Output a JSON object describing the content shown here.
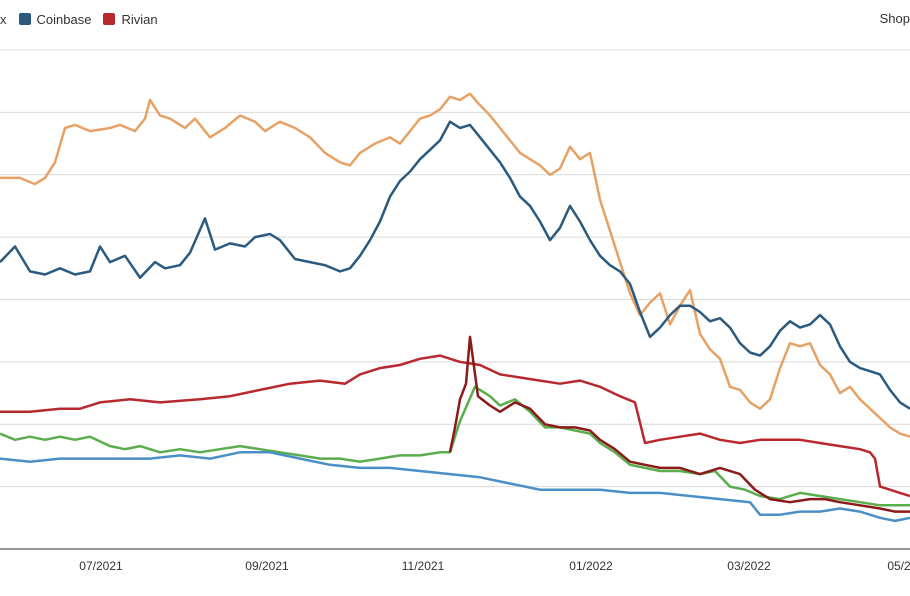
{
  "chart_data": {
    "type": "line",
    "title": "",
    "xlabel": "",
    "ylabel": "",
    "legend": {
      "placement": "top",
      "entries": [
        {
          "name": "x",
          "color": "#e8a165",
          "partial": true
        },
        {
          "name": "Coinbase",
          "color": "#2b5a7e"
        },
        {
          "name": "Rivian",
          "color": "#b8282e"
        }
      ],
      "right_entry": "Shop"
    },
    "x_ticks": [
      "07/2021",
      "09/2021",
      "11/2021",
      "01/2022",
      "03/2022",
      "05/2"
    ],
    "grid": "horizontal",
    "ylim": [
      0,
      8
    ],
    "series": [
      {
        "name": "x",
        "color": "#e8a165",
        "x": [
          0,
          20,
          35,
          45,
          55,
          65,
          75,
          90,
          110,
          120,
          135,
          145,
          150,
          160,
          170,
          185,
          195,
          210,
          225,
          240,
          255,
          265,
          280,
          295,
          310,
          325,
          340,
          350,
          360,
          375,
          390,
          400,
          410,
          420,
          430,
          440,
          450,
          460,
          470,
          478,
          490,
          500,
          510,
          520,
          530,
          540,
          550,
          560,
          570,
          580,
          590,
          600,
          610,
          620,
          630,
          640,
          650,
          660,
          670,
          680,
          690,
          700,
          710,
          720,
          730,
          740,
          750,
          760,
          770,
          780,
          790,
          800,
          810,
          820,
          830,
          840,
          850,
          860,
          870,
          880,
          890,
          900,
          910
        ],
        "y": [
          5.95,
          5.95,
          5.85,
          5.95,
          6.2,
          6.75,
          6.8,
          6.7,
          6.75,
          6.8,
          6.7,
          6.9,
          7.2,
          6.95,
          6.9,
          6.75,
          6.9,
          6.6,
          6.75,
          6.95,
          6.85,
          6.7,
          6.85,
          6.75,
          6.6,
          6.35,
          6.2,
          6.15,
          6.35,
          6.5,
          6.6,
          6.5,
          6.7,
          6.9,
          6.95,
          7.05,
          7.25,
          7.2,
          7.3,
          7.15,
          6.95,
          6.75,
          6.55,
          6.35,
          6.25,
          6.15,
          6.0,
          6.1,
          6.45,
          6.25,
          6.35,
          5.6,
          5.1,
          4.6,
          4.1,
          3.75,
          3.95,
          4.1,
          3.6,
          3.9,
          4.15,
          3.45,
          3.2,
          3.05,
          2.6,
          2.55,
          2.35,
          2.25,
          2.4,
          2.9,
          3.3,
          3.25,
          3.3,
          2.95,
          2.8,
          2.5,
          2.6,
          2.4,
          2.25,
          2.1,
          1.95,
          1.85,
          1.8
        ]
      },
      {
        "name": "Coinbase",
        "color": "#2b5a7e",
        "x": [
          0,
          15,
          30,
          45,
          60,
          75,
          90,
          100,
          110,
          125,
          140,
          155,
          165,
          180,
          190,
          205,
          215,
          230,
          245,
          255,
          270,
          280,
          295,
          310,
          325,
          340,
          350,
          360,
          370,
          380,
          390,
          400,
          410,
          420,
          430,
          440,
          450,
          460,
          470,
          480,
          490,
          500,
          510,
          520,
          530,
          540,
          550,
          560,
          570,
          580,
          590,
          600,
          610,
          620,
          630,
          640,
          650,
          660,
          670,
          680,
          690,
          700,
          710,
          720,
          730,
          740,
          750,
          760,
          770,
          780,
          790,
          800,
          810,
          820,
          830,
          840,
          850,
          860,
          870,
          880,
          890,
          900,
          910
        ],
        "y": [
          4.6,
          4.85,
          4.45,
          4.4,
          4.5,
          4.4,
          4.45,
          4.85,
          4.6,
          4.7,
          4.35,
          4.6,
          4.5,
          4.55,
          4.75,
          5.3,
          4.8,
          4.9,
          4.85,
          5.0,
          5.05,
          4.95,
          4.65,
          4.6,
          4.55,
          4.45,
          4.5,
          4.7,
          4.95,
          5.25,
          5.65,
          5.9,
          6.05,
          6.25,
          6.4,
          6.55,
          6.85,
          6.75,
          6.8,
          6.6,
          6.4,
          6.2,
          5.95,
          5.65,
          5.5,
          5.25,
          4.95,
          5.15,
          5.5,
          5.25,
          4.95,
          4.7,
          4.55,
          4.45,
          4.25,
          3.8,
          3.4,
          3.55,
          3.75,
          3.9,
          3.9,
          3.8,
          3.65,
          3.7,
          3.55,
          3.3,
          3.15,
          3.1,
          3.25,
          3.5,
          3.65,
          3.55,
          3.6,
          3.75,
          3.6,
          3.25,
          3.0,
          2.9,
          2.85,
          2.8,
          2.55,
          2.35,
          2.25
        ]
      },
      {
        "name": "Rivian",
        "color": "#b8282e",
        "x": [
          0,
          30,
          60,
          80,
          100,
          130,
          160,
          200,
          230,
          260,
          290,
          320,
          345,
          360,
          380,
          400,
          420,
          440,
          460,
          480,
          500,
          520,
          540,
          560,
          580,
          600,
          620,
          635,
          645,
          660,
          680,
          700,
          720,
          740,
          760,
          780,
          800,
          820,
          840,
          860,
          870,
          875,
          880,
          890,
          900,
          910
        ],
        "y": [
          2.2,
          2.2,
          2.25,
          2.25,
          2.35,
          2.4,
          2.35,
          2.4,
          2.45,
          2.55,
          2.65,
          2.7,
          2.65,
          2.8,
          2.9,
          2.95,
          3.05,
          3.1,
          3.0,
          2.95,
          2.8,
          2.75,
          2.7,
          2.65,
          2.7,
          2.6,
          2.45,
          2.35,
          1.7,
          1.75,
          1.8,
          1.85,
          1.75,
          1.7,
          1.75,
          1.75,
          1.75,
          1.7,
          1.65,
          1.6,
          1.55,
          1.45,
          1.0,
          0.95,
          0.9,
          0.85
        ]
      },
      {
        "name": "",
        "color": "#5aad4c",
        "x": [
          0,
          15,
          30,
          45,
          60,
          75,
          90,
          110,
          125,
          140,
          160,
          180,
          200,
          220,
          240,
          260,
          280,
          300,
          320,
          340,
          360,
          380,
          400,
          420,
          440,
          450,
          460,
          475,
          490,
          500,
          515,
          530,
          545,
          560,
          575,
          590,
          600,
          615,
          630,
          645,
          660,
          680,
          700,
          715,
          730,
          745,
          760,
          780,
          800,
          820,
          840,
          860,
          880,
          895,
          910
        ],
        "y": [
          1.85,
          1.75,
          1.8,
          1.75,
          1.8,
          1.75,
          1.8,
          1.65,
          1.6,
          1.65,
          1.55,
          1.6,
          1.55,
          1.6,
          1.65,
          1.6,
          1.55,
          1.5,
          1.45,
          1.45,
          1.4,
          1.45,
          1.5,
          1.5,
          1.55,
          1.55,
          2.05,
          2.6,
          2.45,
          2.3,
          2.4,
          2.2,
          1.95,
          1.95,
          1.9,
          1.85,
          1.7,
          1.55,
          1.35,
          1.3,
          1.25,
          1.25,
          1.2,
          1.25,
          1.0,
          0.95,
          0.85,
          0.8,
          0.9,
          0.85,
          0.8,
          0.75,
          0.7,
          0.7,
          0.7
        ]
      },
      {
        "name": "",
        "color": "#8b1a1a",
        "x": [
          450,
          455,
          460,
          466,
          470,
          478,
          490,
          500,
          515,
          530,
          545,
          560,
          575,
          590,
          600,
          615,
          630,
          645,
          660,
          680,
          700,
          720,
          740,
          755,
          770,
          790,
          810,
          825,
          840,
          860,
          880,
          895,
          910
        ],
        "y": [
          1.55,
          1.95,
          2.4,
          2.65,
          3.4,
          2.45,
          2.3,
          2.2,
          2.35,
          2.25,
          2.0,
          1.95,
          1.95,
          1.9,
          1.75,
          1.6,
          1.4,
          1.35,
          1.3,
          1.3,
          1.2,
          1.3,
          1.2,
          0.95,
          0.8,
          0.75,
          0.8,
          0.8,
          0.75,
          0.7,
          0.65,
          0.6,
          0.6
        ]
      },
      {
        "name": "",
        "color": "#4a8fc6",
        "x": [
          0,
          30,
          60,
          90,
          120,
          150,
          180,
          210,
          240,
          270,
          300,
          330,
          360,
          390,
          420,
          450,
          480,
          510,
          540,
          570,
          600,
          630,
          660,
          690,
          720,
          750,
          760,
          780,
          800,
          820,
          840,
          860,
          880,
          895,
          910
        ],
        "y": [
          1.45,
          1.4,
          1.45,
          1.45,
          1.45,
          1.45,
          1.5,
          1.45,
          1.55,
          1.55,
          1.45,
          1.35,
          1.3,
          1.3,
          1.25,
          1.2,
          1.15,
          1.05,
          0.95,
          0.95,
          0.95,
          0.9,
          0.9,
          0.85,
          0.8,
          0.75,
          0.55,
          0.55,
          0.6,
          0.6,
          0.65,
          0.6,
          0.5,
          0.45,
          0.5
        ]
      }
    ]
  }
}
